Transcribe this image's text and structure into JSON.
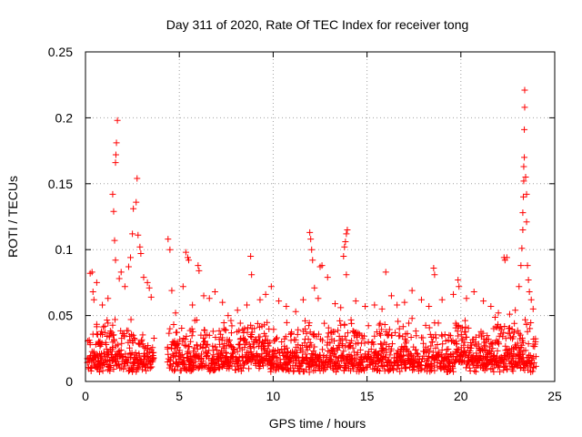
{
  "chart_data": {
    "type": "scatter",
    "title": "Day 311 of 2020, Rate Of TEC Index for receiver tong",
    "xlabel": "GPS time / hours",
    "ylabel": "ROTI / TECUs",
    "xlim": [
      0,
      25
    ],
    "ylim": [
      0,
      0.25
    ],
    "xticks": [
      0,
      5,
      10,
      15,
      20,
      25
    ],
    "xtick_labels": [
      "0",
      "5",
      "10",
      "15",
      "20",
      "25"
    ],
    "yticks": [
      0,
      0.05,
      0.1,
      0.15,
      0.2,
      0.25
    ],
    "ytick_labels": [
      "0",
      "0.05",
      "0.1",
      "0.15",
      "0.2",
      "0.25"
    ],
    "grid": true,
    "marker": "plus",
    "color": "#ff0000",
    "series": [
      {
        "name": "ROTI",
        "points": [
          [
            0.25,
            0.082
          ],
          [
            0.35,
            0.083
          ],
          [
            0.4,
            0.068
          ],
          [
            0.45,
            0.062
          ],
          [
            0.6,
            0.075
          ],
          [
            0.9,
            0.058
          ],
          [
            1.2,
            0.063
          ],
          [
            1.45,
            0.142
          ],
          [
            1.5,
            0.129
          ],
          [
            1.55,
            0.107
          ],
          [
            1.6,
            0.092
          ],
          [
            1.6,
            0.166
          ],
          [
            1.62,
            0.172
          ],
          [
            1.65,
            0.181
          ],
          [
            1.7,
            0.198
          ],
          [
            1.8,
            0.078
          ],
          [
            1.9,
            0.083
          ],
          [
            2.1,
            0.072
          ],
          [
            2.3,
            0.087
          ],
          [
            2.4,
            0.094
          ],
          [
            2.5,
            0.112
          ],
          [
            2.55,
            0.131
          ],
          [
            2.7,
            0.136
          ],
          [
            2.75,
            0.154
          ],
          [
            2.8,
            0.111
          ],
          [
            2.9,
            0.102
          ],
          [
            2.95,
            0.097
          ],
          [
            3.1,
            0.079
          ],
          [
            3.3,
            0.075
          ],
          [
            3.4,
            0.071
          ],
          [
            3.5,
            0.064
          ],
          [
            4.4,
            0.108
          ],
          [
            4.5,
            0.1
          ],
          [
            4.6,
            0.069
          ],
          [
            4.8,
            0.052
          ],
          [
            5.2,
            0.072
          ],
          [
            5.35,
            0.098
          ],
          [
            5.45,
            0.094
          ],
          [
            5.5,
            0.092
          ],
          [
            5.7,
            0.058
          ],
          [
            6.0,
            0.088
          ],
          [
            6.05,
            0.084
          ],
          [
            6.3,
            0.065
          ],
          [
            6.6,
            0.063
          ],
          [
            6.9,
            0.068
          ],
          [
            7.3,
            0.06
          ],
          [
            7.6,
            0.05
          ],
          [
            8.1,
            0.054
          ],
          [
            8.6,
            0.058
          ],
          [
            8.8,
            0.095
          ],
          [
            8.85,
            0.081
          ],
          [
            9.3,
            0.062
          ],
          [
            9.6,
            0.066
          ],
          [
            9.9,
            0.072
          ],
          [
            10.3,
            0.061
          ],
          [
            10.7,
            0.057
          ],
          [
            11.2,
            0.053
          ],
          [
            11.6,
            0.062
          ],
          [
            11.95,
            0.113
          ],
          [
            12.0,
            0.108
          ],
          [
            12.05,
            0.1
          ],
          [
            12.1,
            0.092
          ],
          [
            12.2,
            0.071
          ],
          [
            12.4,
            0.063
          ],
          [
            12.5,
            0.087
          ],
          [
            12.6,
            0.088
          ],
          [
            12.9,
            0.079
          ],
          [
            13.3,
            0.059
          ],
          [
            13.6,
            0.056
          ],
          [
            13.75,
            0.095
          ],
          [
            13.8,
            0.102
          ],
          [
            13.85,
            0.106
          ],
          [
            13.9,
            0.112
          ],
          [
            13.95,
            0.115
          ],
          [
            13.9,
            0.081
          ],
          [
            14.4,
            0.061
          ],
          [
            14.9,
            0.057
          ],
          [
            15.4,
            0.058
          ],
          [
            15.8,
            0.055
          ],
          [
            16.0,
            0.083
          ],
          [
            16.3,
            0.065
          ],
          [
            16.6,
            0.058
          ],
          [
            17.0,
            0.06
          ],
          [
            17.4,
            0.069
          ],
          [
            17.9,
            0.062
          ],
          [
            18.3,
            0.057
          ],
          [
            18.55,
            0.086
          ],
          [
            18.6,
            0.081
          ],
          [
            19.0,
            0.062
          ],
          [
            19.6,
            0.066
          ],
          [
            19.85,
            0.077
          ],
          [
            19.9,
            0.072
          ],
          [
            20.3,
            0.063
          ],
          [
            20.7,
            0.068
          ],
          [
            21.2,
            0.061
          ],
          [
            21.6,
            0.057
          ],
          [
            22.0,
            0.052
          ],
          [
            22.3,
            0.094
          ],
          [
            22.35,
            0.092
          ],
          [
            22.45,
            0.094
          ],
          [
            22.6,
            0.051
          ],
          [
            22.9,
            0.054
          ],
          [
            23.1,
            0.072
          ],
          [
            23.2,
            0.088
          ],
          [
            23.25,
            0.101
          ],
          [
            23.3,
            0.115
          ],
          [
            23.3,
            0.128
          ],
          [
            23.33,
            0.14
          ],
          [
            23.35,
            0.152
          ],
          [
            23.35,
            0.163
          ],
          [
            23.38,
            0.17
          ],
          [
            23.38,
            0.191
          ],
          [
            23.4,
            0.208
          ],
          [
            23.4,
            0.221
          ],
          [
            23.45,
            0.155
          ],
          [
            23.5,
            0.142
          ],
          [
            23.5,
            0.121
          ],
          [
            23.55,
            0.088
          ],
          [
            23.6,
            0.077
          ],
          [
            23.65,
            0.068
          ],
          [
            23.75,
            0.062
          ],
          [
            23.85,
            0.055
          ]
        ]
      }
    ]
  }
}
